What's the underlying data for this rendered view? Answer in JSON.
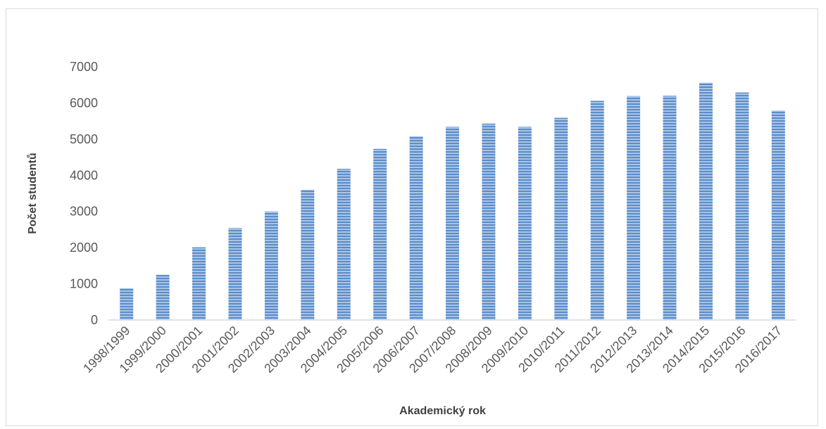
{
  "chart_data": {
    "type": "bar",
    "title": "",
    "xlabel": "Akademický rok",
    "ylabel": "Počet studentů",
    "categories": [
      "1998/1999",
      "1999/2000",
      "2000/2001",
      "2001/2002",
      "2002/2003",
      "2003/2004",
      "2004/2005",
      "2005/2006",
      "2006/2007",
      "2007/2008",
      "2008/2009",
      "2009/2010",
      "2010/2011",
      "2011/2012",
      "2012/2013",
      "2013/2014",
      "2014/2015",
      "2015/2016",
      "2016/2017"
    ],
    "values": [
      880,
      1250,
      2010,
      2540,
      3000,
      3600,
      4180,
      4730,
      5080,
      5340,
      5430,
      5340,
      5590,
      6060,
      6190,
      6200,
      6560,
      6290,
      5790
    ],
    "ylim": [
      0,
      7000
    ],
    "yticks": [
      "0",
      "1000",
      "2000",
      "3000",
      "4000",
      "5000",
      "6000",
      "7000"
    ],
    "grid": false,
    "legend": "none",
    "bar_color": "#5b8cc8",
    "bar_stripe_color": "#a9c4e6"
  }
}
